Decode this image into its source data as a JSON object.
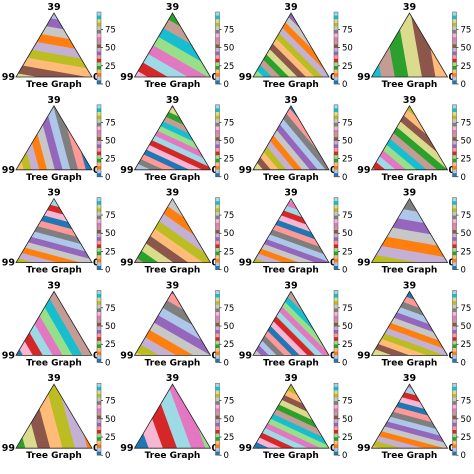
{
  "figure": {
    "rows": 5,
    "cols": 4,
    "palette": [
      "#1f77b4",
      "#aec7e8",
      "#ff7f0e",
      "#ffbb78",
      "#2ca02c",
      "#98df8a",
      "#d62728",
      "#ff9896",
      "#9467bd",
      "#c5b0d5",
      "#8c564b",
      "#c49c94",
      "#e377c2",
      "#f7b6d2",
      "#7f7f7f",
      "#c7c7c7",
      "#bcbd22",
      "#dbdb8d",
      "#17becf",
      "#9edae5"
    ]
  },
  "chart_data": [
    {
      "type": "heatmap",
      "title": "",
      "top_label": "39",
      "left_label": "99",
      "right_label": "0",
      "xlabel": "Tree Graph",
      "colorbar_ticks": [
        0,
        25,
        50,
        75
      ],
      "colorbar_range": [
        0,
        99
      ],
      "stripe_angle_deg": 100,
      "stripe_count": 14
    },
    {
      "type": "heatmap",
      "title": "",
      "top_label": "39",
      "left_label": "99",
      "right_label": "0",
      "xlabel": "Tree Graph",
      "colorbar_ticks": [
        0,
        25,
        50,
        75
      ],
      "colorbar_range": [
        0,
        99
      ],
      "stripe_angle_deg": 120,
      "stripe_count": 12
    },
    {
      "type": "heatmap",
      "title": "",
      "top_label": "39",
      "left_label": "99",
      "right_label": "0",
      "xlabel": "Tree Graph",
      "colorbar_ticks": [
        0,
        25,
        50,
        75
      ],
      "colorbar_range": [
        0,
        99
      ],
      "stripe_angle_deg": 135,
      "stripe_count": 20
    },
    {
      "type": "heatmap",
      "title": "",
      "top_label": "39",
      "left_label": "99",
      "right_label": "0",
      "xlabel": "Tree Graph",
      "colorbar_ticks": [
        0,
        25,
        50,
        75
      ],
      "colorbar_range": [
        0,
        99
      ],
      "stripe_angle_deg": 170,
      "stripe_count": 9
    },
    {
      "type": "heatmap",
      "title": "",
      "top_label": "39",
      "left_label": "99",
      "right_label": "0",
      "xlabel": "Tree Graph",
      "colorbar_ticks": [
        0,
        25,
        50,
        75
      ],
      "colorbar_range": [
        0,
        99
      ],
      "stripe_angle_deg": 165,
      "stripe_count": 16
    },
    {
      "type": "heatmap",
      "title": "",
      "top_label": "39",
      "left_label": "99",
      "right_label": "0",
      "xlabel": "Tree Graph",
      "colorbar_ticks": [
        0,
        25,
        50,
        75
      ],
      "colorbar_range": [
        0,
        99
      ],
      "stripe_angle_deg": 115,
      "stripe_count": 22
    },
    {
      "type": "heatmap",
      "title": "",
      "top_label": "39",
      "left_label": "99",
      "right_label": "0",
      "xlabel": "Tree Graph",
      "colorbar_ticks": [
        0,
        25,
        50,
        75
      ],
      "colorbar_range": [
        0,
        99
      ],
      "stripe_angle_deg": 140,
      "stripe_count": 20
    },
    {
      "type": "heatmap",
      "title": "",
      "top_label": "39",
      "left_label": "99",
      "right_label": "0",
      "xlabel": "Tree Graph",
      "colorbar_ticks": [
        0,
        25,
        50,
        75
      ],
      "colorbar_range": [
        0,
        99
      ],
      "stripe_angle_deg": 130,
      "stripe_count": 18
    },
    {
      "type": "heatmap",
      "title": "",
      "top_label": "39",
      "left_label": "99",
      "right_label": "0",
      "xlabel": "Tree Graph",
      "colorbar_ticks": [
        0,
        25,
        50,
        75
      ],
      "colorbar_range": [
        0,
        99
      ],
      "stripe_angle_deg": 105,
      "stripe_count": 20
    },
    {
      "type": "heatmap",
      "title": "",
      "top_label": "39",
      "left_label": "99",
      "right_label": "0",
      "xlabel": "Tree Graph",
      "colorbar_ticks": [
        0,
        25,
        50,
        75
      ],
      "colorbar_range": [
        0,
        99
      ],
      "stripe_angle_deg": 125,
      "stripe_count": 14
    },
    {
      "type": "heatmap",
      "title": "",
      "top_label": "39",
      "left_label": "99",
      "right_label": "0",
      "xlabel": "Tree Graph",
      "colorbar_ticks": [
        0,
        25,
        50,
        75
      ],
      "colorbar_range": [
        0,
        99
      ],
      "stripe_angle_deg": 110,
      "stripe_count": 22
    },
    {
      "type": "heatmap",
      "title": "",
      "top_label": "39",
      "left_label": "99",
      "right_label": "0",
      "xlabel": "Tree Graph",
      "colorbar_ticks": [
        0,
        25,
        50,
        75
      ],
      "colorbar_range": [
        0,
        99
      ],
      "stripe_angle_deg": 100,
      "stripe_count": 12
    },
    {
      "type": "heatmap",
      "title": "",
      "top_label": "39",
      "left_label": "99",
      "right_label": "0",
      "xlabel": "Tree Graph",
      "colorbar_ticks": [
        0,
        25,
        50,
        75
      ],
      "colorbar_range": [
        0,
        99
      ],
      "stripe_angle_deg": 150,
      "stripe_count": 14
    },
    {
      "type": "heatmap",
      "title": "",
      "top_label": "39",
      "left_label": "99",
      "right_label": "0",
      "xlabel": "Tree Graph",
      "colorbar_ticks": [
        0,
        25,
        50,
        75
      ],
      "colorbar_range": [
        0,
        99
      ],
      "stripe_angle_deg": 120,
      "stripe_count": 14
    },
    {
      "type": "heatmap",
      "title": "",
      "top_label": "39",
      "left_label": "99",
      "right_label": "0",
      "xlabel": "Tree Graph",
      "colorbar_ticks": [
        0,
        25,
        50,
        75
      ],
      "colorbar_range": [
        0,
        99
      ],
      "stripe_angle_deg": 135,
      "stripe_count": 22
    },
    {
      "type": "heatmap",
      "title": "",
      "top_label": "39",
      "left_label": "99",
      "right_label": "0",
      "xlabel": "Tree Graph",
      "colorbar_ticks": [
        0,
        25,
        50,
        75
      ],
      "colorbar_range": [
        0,
        99
      ],
      "stripe_angle_deg": 110,
      "stripe_count": 20
    },
    {
      "type": "heatmap",
      "title": "",
      "top_label": "39",
      "left_label": "99",
      "right_label": "0",
      "xlabel": "Tree Graph",
      "colorbar_ticks": [
        0,
        25,
        50,
        75
      ],
      "colorbar_range": [
        0,
        99
      ],
      "stripe_angle_deg": 165,
      "stripe_count": 10
    },
    {
      "type": "heatmap",
      "title": "",
      "top_label": "39",
      "left_label": "99",
      "right_label": "0",
      "xlabel": "Tree Graph",
      "colorbar_ticks": [
        0,
        25,
        50,
        75
      ],
      "colorbar_range": [
        0,
        99
      ],
      "stripe_angle_deg": 160,
      "stripe_count": 9
    },
    {
      "type": "heatmap",
      "title": "",
      "top_label": "39",
      "left_label": "99",
      "right_label": "0",
      "xlabel": "Tree Graph",
      "colorbar_ticks": [
        0,
        25,
        50,
        75
      ],
      "colorbar_range": [
        0,
        99
      ],
      "stripe_angle_deg": 115,
      "stripe_count": 22
    },
    {
      "type": "heatmap",
      "title": "",
      "top_label": "39",
      "left_label": "99",
      "right_label": "0",
      "xlabel": "Tree Graph",
      "colorbar_ticks": [
        0,
        25,
        50,
        75
      ],
      "colorbar_range": [
        0,
        99
      ],
      "stripe_angle_deg": 105,
      "stripe_count": 22
    }
  ]
}
